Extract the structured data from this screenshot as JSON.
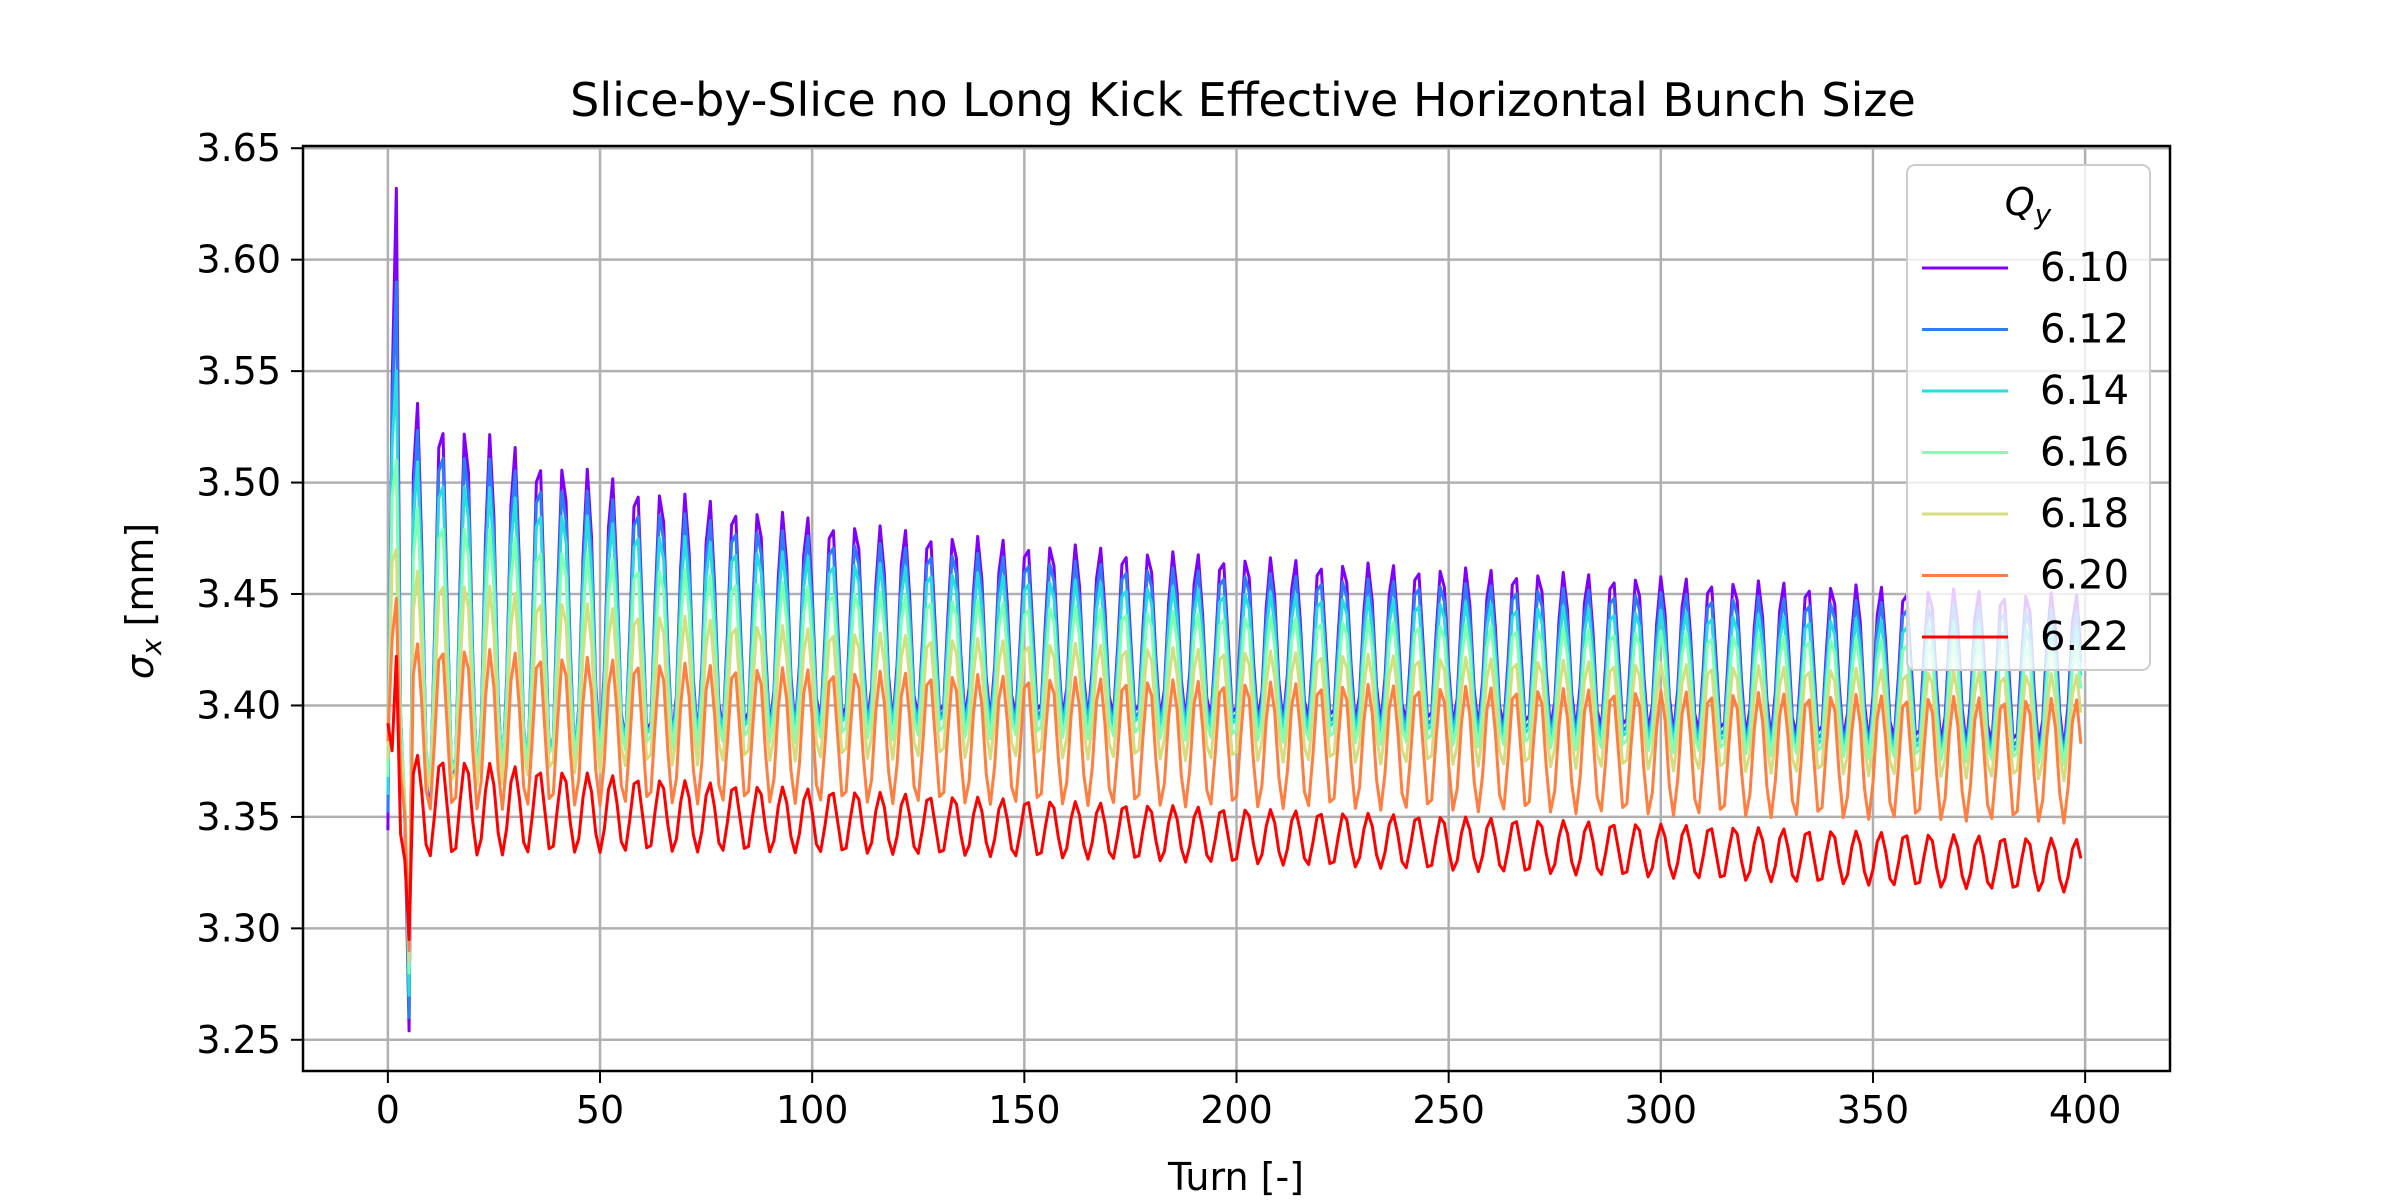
{
  "chart_data": {
    "type": "line",
    "title": "Slice-by-Slice no Long Kick Effective Horizontal Bunch Size",
    "xlabel": "Turn [-]",
    "ylabel_symbol": "σ",
    "ylabel_sub": "x",
    "ylabel_unit": " [mm]",
    "xlim": [
      -20,
      420
    ],
    "ylim": [
      3.236,
      3.651
    ],
    "xticks": [
      0,
      50,
      100,
      150,
      200,
      250,
      300,
      350,
      400
    ],
    "xtick_labels": [
      "0",
      "50",
      "100",
      "150",
      "200",
      "250",
      "300",
      "350",
      "400"
    ],
    "yticks": [
      3.25,
      3.3,
      3.35,
      3.4,
      3.45,
      3.5,
      3.55,
      3.6,
      3.65
    ],
    "ytick_labels": [
      "3.25",
      "3.30",
      "3.35",
      "3.40",
      "3.45",
      "3.50",
      "3.55",
      "3.60",
      "3.65"
    ],
    "grid": true,
    "legend": {
      "title_symbol": "Q",
      "title_sub": "y",
      "placement": "top-right"
    },
    "x": {
      "start": 0,
      "stop": 399,
      "step": 1
    },
    "oscillation_period_turns": 5.75,
    "series": [
      {
        "name": "6.10",
        "color": "#8000ff",
        "center": 3.445,
        "center_end": 3.415,
        "amp_start": 0.1,
        "amp_end": 0.035,
        "peak": 3.632,
        "trough": 3.254
      },
      {
        "name": "6.12",
        "color": "#2c7ef7",
        "center": 3.44,
        "center_end": 3.41,
        "amp_start": 0.092,
        "amp_end": 0.033,
        "peak": 3.59,
        "trough": 3.26
      },
      {
        "name": "6.14",
        "color": "#2adddd",
        "center": 3.435,
        "center_end": 3.405,
        "amp_start": 0.082,
        "amp_end": 0.03,
        "peak": 3.55,
        "trough": 3.27
      },
      {
        "name": "6.16",
        "color": "#80ffb4",
        "center": 3.425,
        "center_end": 3.4,
        "amp_start": 0.07,
        "amp_end": 0.027,
        "peak": 3.51,
        "trough": 3.28
      },
      {
        "name": "6.18",
        "color": "#d4dd80",
        "center": 3.41,
        "center_end": 3.39,
        "amp_start": 0.055,
        "amp_end": 0.024,
        "peak": 3.47,
        "trough": 3.285
      },
      {
        "name": "6.20",
        "color": "#ff7e41",
        "center": 3.39,
        "center_end": 3.375,
        "amp_start": 0.04,
        "amp_end": 0.028,
        "peak": 3.448,
        "trough": 3.29
      },
      {
        "name": "6.22",
        "color": "#ff0000",
        "center": 3.355,
        "center_end": 3.328,
        "amp_start": 0.025,
        "amp_end": 0.012,
        "peak": 3.422,
        "trough": 3.295
      }
    ]
  }
}
